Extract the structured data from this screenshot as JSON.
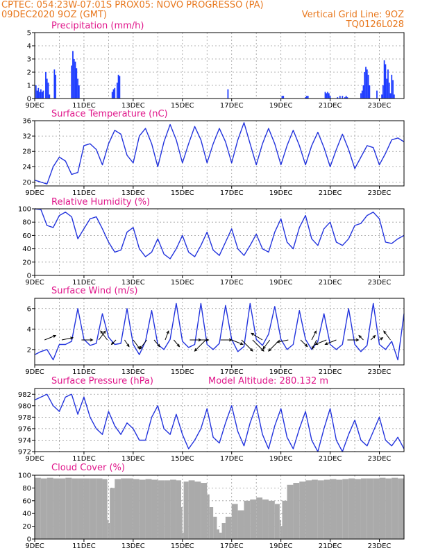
{
  "header": {
    "line1_left": "CPTEC:   054:23W-07:01S   PROX05: NOVO PROGRESSO (PA)",
    "line2_left": "09DEC2020 9OZ (GMT)",
    "line2_right": "Vertical Grid Line: 9OZ",
    "line3_right": "TQ0126L028"
  },
  "x_axis": {
    "tick_labels": [
      "9DEC",
      "11DEC",
      "13DEC",
      "15DEC",
      "17DEC",
      "19DEC",
      "21DEC",
      "23DEC"
    ],
    "tick_days": [
      0,
      2,
      4,
      6,
      8,
      10,
      12,
      14
    ],
    "range_days": [
      0,
      15
    ]
  },
  "chart_data": [
    {
      "type": "bar",
      "title": "Precipitation (mm/h)",
      "ylim": [
        0,
        5
      ],
      "yticks": [
        0,
        1,
        2,
        3,
        4,
        5
      ],
      "color": "#1e3cff",
      "x": [
        0.05,
        0.1,
        0.15,
        0.2,
        0.25,
        0.3,
        0.35,
        0.45,
        0.5,
        0.55,
        0.6,
        0.8,
        0.85,
        1.5,
        1.55,
        1.6,
        1.65,
        1.7,
        1.75,
        1.8,
        3.15,
        3.2,
        3.25,
        3.35,
        3.4,
        3.45,
        7.85,
        10.05,
        10.1,
        11.0,
        11.05,
        11.1,
        11.8,
        11.85,
        11.9,
        11.95,
        12.0,
        12.3,
        12.4,
        12.5,
        12.6,
        12.65,
        12.7,
        13.25,
        13.3,
        13.35,
        13.4,
        13.45,
        13.5,
        13.55,
        13.6,
        13.9,
        14.1,
        14.15,
        14.2,
        14.25,
        14.3,
        14.35,
        14.4,
        14.45,
        14.5,
        14.55,
        14.6
      ],
      "values": [
        1.0,
        0.6,
        0.8,
        0.5,
        0.7,
        0.5,
        0.6,
        2.0,
        1.5,
        1.2,
        0.3,
        2.2,
        1.8,
        2.5,
        3.6,
        3.0,
        2.8,
        2.3,
        1.5,
        1.0,
        0.5,
        0.7,
        0.8,
        1.2,
        1.8,
        1.7,
        0.7,
        0.2,
        0.2,
        0.1,
        0.2,
        0.2,
        0.5,
        0.4,
        0.5,
        0.4,
        0.2,
        0.1,
        0.2,
        0.2,
        0.1,
        0.2,
        0.1,
        0.4,
        0.6,
        1.0,
        2.0,
        2.4,
        2.2,
        1.8,
        1.0,
        0.6,
        0.3,
        1.0,
        2.9,
        2.6,
        1.5,
        2.2,
        1.2,
        0.4,
        1.8,
        1.4,
        0.3
      ]
    },
    {
      "type": "line",
      "title": "Surface Temperature (nC)",
      "ylim": [
        19,
        36
      ],
      "yticks": [
        20,
        24,
        28,
        32,
        36
      ],
      "color": "#2233dd",
      "x": [
        0,
        0.25,
        0.5,
        0.75,
        1.0,
        1.25,
        1.5,
        1.75,
        2.0,
        2.25,
        2.5,
        2.75,
        3.0,
        3.25,
        3.5,
        3.75,
        4.0,
        4.25,
        4.5,
        4.75,
        5.0,
        5.25,
        5.5,
        5.75,
        6.0,
        6.25,
        6.5,
        6.75,
        7.0,
        7.25,
        7.5,
        7.75,
        8.0,
        8.25,
        8.5,
        8.75,
        9.0,
        9.25,
        9.5,
        9.75,
        10.0,
        10.25,
        10.5,
        10.75,
        11.0,
        11.25,
        11.5,
        11.75,
        12.0,
        12.25,
        12.5,
        12.75,
        13.0,
        13.25,
        13.5,
        13.75,
        14.0,
        14.25,
        14.5,
        14.75,
        15.0
      ],
      "values": [
        20.5,
        20.0,
        19.5,
        24.0,
        26.5,
        25.5,
        22.0,
        22.5,
        29.5,
        30.0,
        28.5,
        24.5,
        30.0,
        33.5,
        32.5,
        27.0,
        25.0,
        32.0,
        34.0,
        30.0,
        24.0,
        30.5,
        35.0,
        31.0,
        25.0,
        30.0,
        34.5,
        31.0,
        25.0,
        30.0,
        34.0,
        30.5,
        25.0,
        31.0,
        35.5,
        30.0,
        24.5,
        30.0,
        34.0,
        30.0,
        24.5,
        29.5,
        33.5,
        29.5,
        24.5,
        29.5,
        33.0,
        29.0,
        24.0,
        28.5,
        32.5,
        28.5,
        23.5,
        26.5,
        29.5,
        29.0,
        24.5,
        27.5,
        31.0,
        31.5,
        30.5
      ]
    },
    {
      "type": "line",
      "title": "Relative Humidity (%)",
      "ylim": [
        0,
        100
      ],
      "yticks": [
        0,
        20,
        40,
        60,
        80,
        100
      ],
      "color": "#2233dd",
      "x": [
        0,
        0.25,
        0.5,
        0.75,
        1.0,
        1.25,
        1.5,
        1.75,
        2.0,
        2.25,
        2.5,
        2.75,
        3.0,
        3.25,
        3.5,
        3.75,
        4.0,
        4.25,
        4.5,
        4.75,
        5.0,
        5.25,
        5.5,
        5.75,
        6.0,
        6.25,
        6.5,
        6.75,
        7.0,
        7.25,
        7.5,
        7.75,
        8.0,
        8.25,
        8.5,
        8.75,
        9.0,
        9.25,
        9.5,
        9.75,
        10.0,
        10.25,
        10.5,
        10.75,
        11.0,
        11.25,
        11.5,
        11.75,
        12.0,
        12.25,
        12.5,
        12.75,
        13.0,
        13.25,
        13.5,
        13.75,
        14.0,
        14.25,
        14.5,
        14.75,
        15.0
      ],
      "values": [
        100,
        99,
        75,
        72,
        90,
        95,
        88,
        55,
        70,
        85,
        88,
        70,
        50,
        35,
        38,
        65,
        72,
        40,
        28,
        35,
        55,
        32,
        25,
        40,
        60,
        35,
        28,
        45,
        65,
        38,
        30,
        50,
        70,
        40,
        30,
        45,
        62,
        40,
        35,
        65,
        85,
        50,
        40,
        72,
        90,
        55,
        45,
        70,
        80,
        50,
        45,
        55,
        75,
        78,
        90,
        95,
        85,
        50,
        48,
        55,
        60
      ]
    },
    {
      "type": "line",
      "title": "Surface Wind (m/s)",
      "ylim": [
        0.5,
        7
      ],
      "yticks": [
        2,
        4,
        6
      ],
      "color": "#2233dd",
      "x": [
        0,
        0.25,
        0.5,
        0.75,
        1.0,
        1.25,
        1.5,
        1.75,
        2.0,
        2.25,
        2.5,
        2.75,
        3.0,
        3.25,
        3.5,
        3.75,
        4.0,
        4.25,
        4.5,
        4.75,
        5.0,
        5.25,
        5.5,
        5.75,
        6.0,
        6.25,
        6.5,
        6.75,
        7.0,
        7.25,
        7.5,
        7.75,
        8.0,
        8.25,
        8.5,
        8.75,
        9.0,
        9.25,
        9.5,
        9.75,
        10.0,
        10.25,
        10.5,
        10.75,
        11.0,
        11.25,
        11.5,
        11.75,
        12.0,
        12.25,
        12.5,
        12.75,
        13.0,
        13.25,
        13.5,
        13.75,
        14.0,
        14.25,
        14.5,
        14.75,
        15.0
      ],
      "values": [
        1.5,
        1.8,
        2.0,
        1.0,
        2.5,
        2.5,
        2.8,
        6.0,
        3.0,
        2.4,
        2.6,
        5.5,
        3.2,
        2.5,
        2.6,
        6.0,
        2.5,
        1.5,
        2.8,
        5.8,
        2.5,
        2.0,
        3.0,
        6.5,
        2.8,
        2.2,
        2.5,
        6.5,
        2.5,
        2.0,
        2.6,
        6.3,
        3.0,
        1.8,
        2.3,
        6.5,
        3.0,
        2.4,
        3.5,
        6.2,
        3.0,
        2.0,
        2.5,
        5.8,
        3.0,
        2.0,
        2.8,
        5.5,
        2.5,
        2.0,
        2.5,
        6.0,
        2.5,
        1.8,
        2.4,
        6.5,
        2.5,
        2.0,
        2.8,
        1.0,
        5.5
      ],
      "vectors": {
        "x": [
          0.4,
          1.1,
          1.9,
          2.6,
          2.95,
          3.3,
          3.65,
          4.0,
          4.55,
          4.85,
          5.3,
          5.65,
          6.3,
          6.7,
          6.95,
          7.55,
          8.0,
          8.4,
          8.85,
          9.25,
          9.55,
          9.95,
          10.3,
          10.8,
          11.25,
          11.45,
          11.85,
          12.25,
          12.7,
          13.35,
          13.65,
          14.0,
          14.45
        ],
        "u": [
          1.0,
          1.0,
          1.0,
          0.6,
          -0.6,
          -0.4,
          0.4,
          0.6,
          -0.6,
          0.5,
          0.3,
          0.5,
          1.0,
          0.8,
          -1.0,
          1.0,
          1.0,
          1.0,
          1.0,
          -1.0,
          -0.6,
          -1.0,
          -1.0,
          0.6,
          0.4,
          -0.4,
          -1.0,
          -1.0,
          1.0,
          -0.4,
          0.4,
          0.3,
          -0.6
        ],
        "v": [
          0.4,
          0.2,
          0.0,
          0.8,
          0.8,
          -0.4,
          -0.6,
          -0.8,
          -0.8,
          -0.6,
          0.8,
          -0.6,
          0.0,
          0.0,
          -1.0,
          0.0,
          -0.4,
          -1.0,
          -1.0,
          0.6,
          -0.8,
          -1.0,
          -0.2,
          -0.6,
          0.8,
          -0.8,
          -0.4,
          -0.4,
          0.0,
          0.4,
          0.4,
          0.2,
          0.8
        ]
      }
    },
    {
      "type": "line",
      "title": "Surface Pressure (hPa)",
      "annotation": "Model Altitude: 280.132 m",
      "ylim": [
        972,
        983
      ],
      "yticks": [
        972,
        974,
        976,
        978,
        980,
        982
      ],
      "color": "#2233dd",
      "x": [
        0,
        0.25,
        0.5,
        0.75,
        1.0,
        1.25,
        1.5,
        1.75,
        2.0,
        2.25,
        2.5,
        2.75,
        3.0,
        3.25,
        3.5,
        3.75,
        4.0,
        4.25,
        4.5,
        4.75,
        5.0,
        5.25,
        5.5,
        5.75,
        6.0,
        6.25,
        6.5,
        6.75,
        7.0,
        7.25,
        7.5,
        7.75,
        8.0,
        8.25,
        8.5,
        8.75,
        9.0,
        9.25,
        9.5,
        9.75,
        10.0,
        10.25,
        10.5,
        10.75,
        11.0,
        11.25,
        11.5,
        11.75,
        12.0,
        12.25,
        12.5,
        12.75,
        13.0,
        13.25,
        13.5,
        13.75,
        14.0,
        14.25,
        14.5,
        14.75,
        15.0
      ],
      "values": [
        981.0,
        981.5,
        982.0,
        980.0,
        979.0,
        981.5,
        982.0,
        978.5,
        981.5,
        978.0,
        976.0,
        975.0,
        979.0,
        976.5,
        975.0,
        977.0,
        976.0,
        974.0,
        974.0,
        978.0,
        980.0,
        976.0,
        975.0,
        978.5,
        975.0,
        972.5,
        974.0,
        976.0,
        979.5,
        974.5,
        973.5,
        977.0,
        980.0,
        975.5,
        973.0,
        977.0,
        980.0,
        975.0,
        972.5,
        976.5,
        979.5,
        974.5,
        972.5,
        976.0,
        979.0,
        974.0,
        972.0,
        976.0,
        979.5,
        974.0,
        972.0,
        975.0,
        977.5,
        974.0,
        973.0,
        975.5,
        978.0,
        974.0,
        973.0,
        974.5,
        972.5
      ]
    },
    {
      "type": "area",
      "title": "Cloud Cover (%)",
      "ylim": [
        0,
        100
      ],
      "yticks": [
        0,
        20,
        40,
        60,
        80,
        100
      ],
      "color": "#aaaaaa",
      "x": [
        0,
        0.25,
        0.5,
        0.75,
        1.0,
        1.25,
        1.5,
        1.75,
        2.0,
        2.25,
        2.5,
        2.75,
        2.95,
        3.0,
        3.05,
        3.25,
        3.5,
        3.75,
        4.0,
        4.25,
        4.5,
        4.75,
        5.0,
        5.25,
        5.5,
        5.75,
        5.95,
        6.0,
        6.05,
        6.25,
        6.5,
        6.75,
        7.0,
        7.1,
        7.25,
        7.4,
        7.5,
        7.6,
        7.75,
        8.0,
        8.25,
        8.5,
        8.75,
        9.0,
        9.25,
        9.5,
        9.75,
        9.95,
        10.0,
        10.05,
        10.25,
        10.5,
        10.75,
        11.0,
        11.25,
        11.5,
        11.75,
        12.0,
        12.25,
        12.5,
        12.75,
        13.0,
        13.25,
        13.5,
        13.75,
        14.0,
        14.25,
        14.5,
        14.75,
        15.0
      ],
      "values": [
        96,
        95,
        96,
        95,
        95,
        96,
        95,
        95,
        95,
        95,
        95,
        94,
        30,
        25,
        80,
        94,
        95,
        95,
        94,
        93,
        94,
        93,
        92,
        92,
        93,
        92,
        50,
        10,
        90,
        92,
        90,
        88,
        70,
        50,
        35,
        15,
        10,
        25,
        35,
        55,
        45,
        60,
        62,
        65,
        62,
        60,
        55,
        30,
        20,
        60,
        85,
        88,
        90,
        92,
        93,
        92,
        93,
        94,
        93,
        94,
        95,
        94,
        95,
        95,
        95,
        96,
        95,
        96,
        95,
        96
      ]
    }
  ]
}
